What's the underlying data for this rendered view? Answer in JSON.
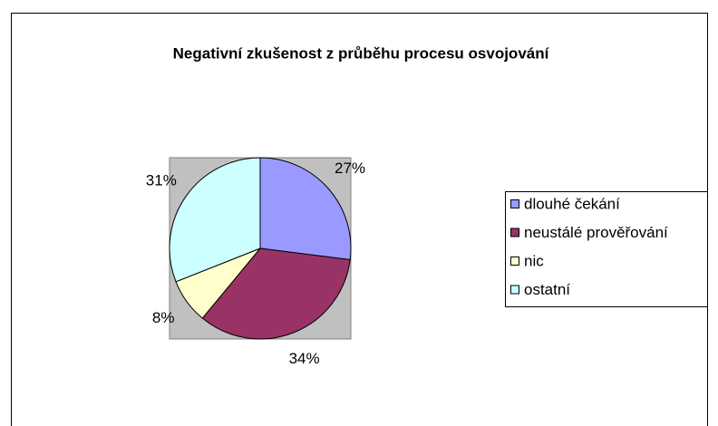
{
  "chart_data": {
    "type": "pie",
    "title": "Negativní zkušenost z průběhu procesu osvojování",
    "categories": [
      "dlouhé čekání",
      "neustálé prověřování",
      "nic",
      "ostatní"
    ],
    "values": [
      27,
      34,
      8,
      31
    ],
    "value_labels": [
      "27%",
      "34%",
      "8%",
      "31%"
    ],
    "colors": [
      "#9999ff",
      "#993366",
      "#ffffcc",
      "#ccffff"
    ],
    "legend": "right"
  }
}
